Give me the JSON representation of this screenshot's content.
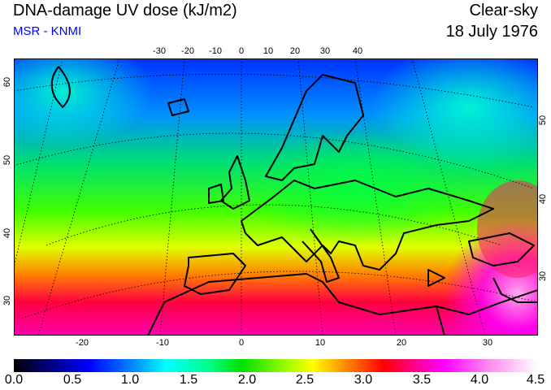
{
  "header": {
    "title": "DNA-damage UV dose (kJ/m2)",
    "credit": "MSR - KNMI",
    "condition": "Clear-sky",
    "date": "18 July 1976"
  },
  "axes": {
    "top_lon_labels": [
      "-30",
      "-20",
      "-10",
      "0",
      "10",
      "20",
      "30",
      "40"
    ],
    "bottom_lon_labels": [
      "-20",
      "-10",
      "0",
      "10",
      "20",
      "30"
    ],
    "left_lat_labels": [
      "60",
      "50",
      "40",
      "30"
    ],
    "right_lat_labels": [
      "50",
      "40",
      "30"
    ]
  },
  "colorbar": {
    "labels": [
      "0.0",
      "0.5",
      "1.0",
      "1.5",
      "2.0",
      "2.5",
      "3.0",
      "3.5",
      "4.0",
      "4.5"
    ],
    "range": [
      0.0,
      4.5
    ],
    "colors": [
      "#000000",
      "#0000ff",
      "#00ffff",
      "#00e000",
      "#ffff00",
      "#ff0000",
      "#ff00ff",
      "#ffffff"
    ]
  }
}
